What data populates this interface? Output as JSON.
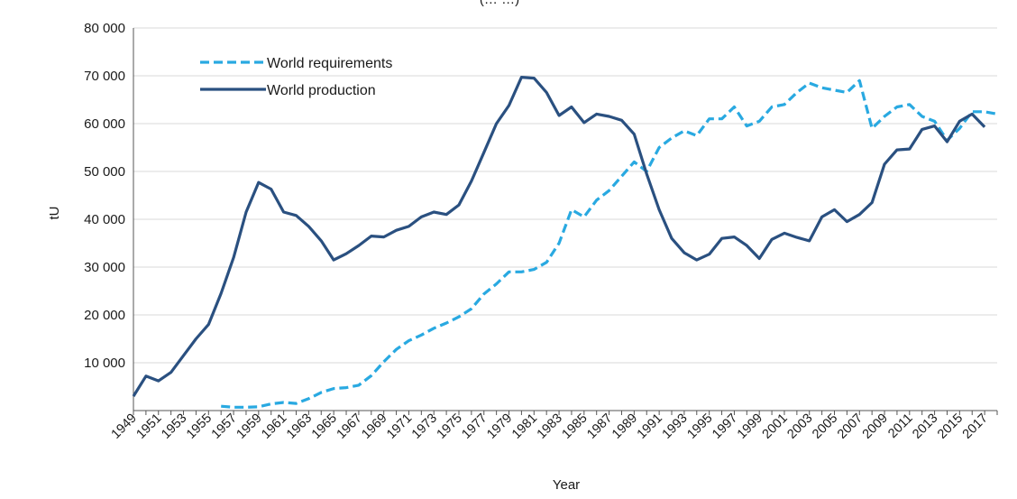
{
  "chart_data": {
    "type": "line",
    "title": "(… …)",
    "xlabel": "Year",
    "ylabel": "tU",
    "ylim": [
      0,
      80000
    ],
    "yticks": [
      10000,
      20000,
      30000,
      40000,
      50000,
      60000,
      70000,
      80000
    ],
    "ytick_labels": [
      "10 000",
      "20 000",
      "30 000",
      "40 000",
      "50 000",
      "60 000",
      "70 000",
      "80 000"
    ],
    "x": [
      1949,
      1950,
      1951,
      1952,
      1953,
      1954,
      1955,
      1956,
      1957,
      1958,
      1959,
      1960,
      1961,
      1962,
      1963,
      1964,
      1965,
      1966,
      1967,
      1968,
      1969,
      1970,
      1971,
      1972,
      1973,
      1974,
      1975,
      1976,
      1977,
      1978,
      1979,
      1980,
      1981,
      1982,
      1983,
      1984,
      1985,
      1986,
      1987,
      1988,
      1989,
      1990,
      1991,
      1992,
      1993,
      1994,
      1995,
      1996,
      1997,
      1998,
      1999,
      2000,
      2001,
      2002,
      2003,
      2004,
      2005,
      2006,
      2007,
      2008,
      2009,
      2010,
      2011,
      2012,
      2013,
      2014,
      2015,
      2016,
      2017,
      2018
    ],
    "xtick_labels": [
      "1949",
      "1951",
      "1953",
      "1955",
      "1957",
      "1959",
      "1961",
      "1963",
      "1965",
      "1967",
      "1969",
      "1971",
      "1973",
      "1975",
      "1977",
      "1979",
      "1981",
      "1983",
      "1985",
      "1987",
      "1989",
      "1991",
      "1993",
      "1995",
      "1997",
      "1999",
      "2001",
      "2003",
      "2005",
      "2007",
      "2009",
      "2011",
      "2013",
      "2015",
      "2017"
    ],
    "grid": true,
    "legend_position": "top-left",
    "series": [
      {
        "name": "World requirements",
        "color": "#29a9e1",
        "style": "dashed",
        "values": [
          null,
          null,
          null,
          null,
          null,
          null,
          null,
          900,
          700,
          700,
          800,
          1400,
          1700,
          1500,
          2500,
          3800,
          4600,
          4800,
          5300,
          7300,
          10200,
          12800,
          14600,
          15800,
          17200,
          18300,
          19600,
          21300,
          24400,
          26500,
          29000,
          29000,
          29500,
          31000,
          35000,
          42000,
          40500,
          44000,
          46000,
          49000,
          52000,
          50000,
          55000,
          57000,
          58500,
          57500,
          61000,
          61000,
          63500,
          59500,
          60500,
          63500,
          64000,
          66500,
          68500,
          67500,
          67000,
          66500,
          69000,
          59000,
          61500,
          63500,
          64000,
          61500,
          60500,
          56500,
          59000,
          62500,
          62500,
          62000
        ]
      },
      {
        "name": "World production",
        "color": "#2a5080",
        "style": "solid",
        "values": [
          3000,
          7200,
          6200,
          8000,
          11500,
          15000,
          18000,
          24500,
          32000,
          41500,
          47700,
          46300,
          41500,
          40800,
          38500,
          35500,
          31500,
          32800,
          34500,
          36500,
          36300,
          37700,
          38500,
          40500,
          41500,
          41000,
          43000,
          48000,
          54000,
          60000,
          63800,
          69700,
          69500,
          66500,
          61700,
          63500,
          60200,
          62000,
          61500,
          60700,
          57800,
          49500,
          42000,
          36000,
          33000,
          31500,
          32700,
          36000,
          36300,
          34500,
          31800,
          35800,
          37100,
          36200,
          35500,
          40500,
          42000,
          39500,
          41000,
          43500,
          51500,
          54500,
          54700,
          58800,
          59500,
          56200,
          60500,
          62000,
          59300,
          null
        ]
      }
    ]
  }
}
